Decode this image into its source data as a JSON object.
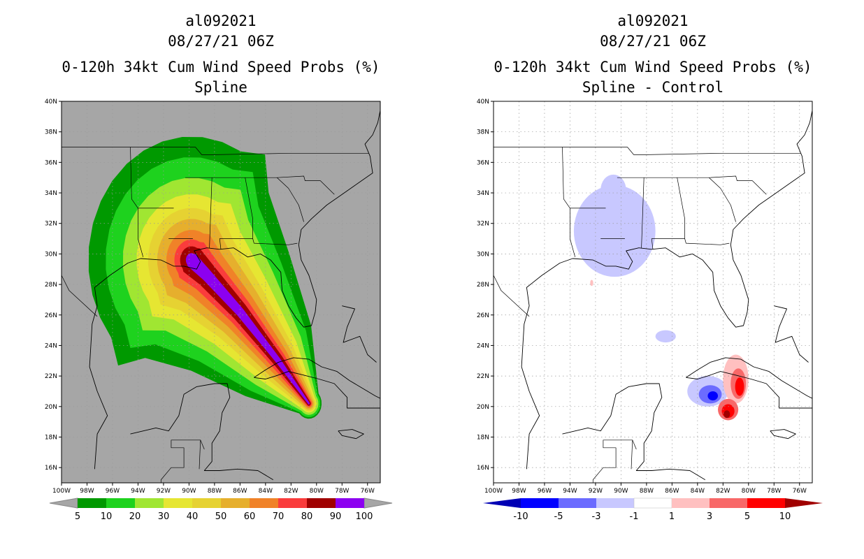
{
  "panels": [
    {
      "storm_id": "al092021",
      "datetime": "08/27/21 06Z",
      "title": "0-120h 34kt Cum Wind Speed Probs (%)",
      "subtitle": "Spline"
    },
    {
      "storm_id": "al092021",
      "datetime": "08/27/21 06Z",
      "title": "0-120h 34kt Cum Wind Speed Probs (%)",
      "subtitle": "Spline - Control"
    }
  ],
  "chart_data": [
    {
      "type": "heatmap",
      "title": "0-120h 34kt Cum Wind Speed Probs (%)",
      "subtitle": "Spline",
      "xlim": [
        -100,
        -75
      ],
      "ylim": [
        15,
        40
      ],
      "x_ticks": [
        -100,
        -98,
        -96,
        -94,
        -92,
        -90,
        -88,
        -86,
        -84,
        -82,
        -80,
        -78,
        -76
      ],
      "y_ticks": [
        16,
        18,
        20,
        22,
        24,
        26,
        28,
        30,
        32,
        34,
        36,
        38,
        40
      ],
      "x_tick_labels": [
        "100W",
        "98W",
        "96W",
        "94W",
        "92W",
        "90W",
        "88W",
        "86W",
        "84W",
        "82W",
        "80W",
        "78W",
        "76W"
      ],
      "y_tick_labels": [
        "16N",
        "18N",
        "20N",
        "22N",
        "24N",
        "26N",
        "28N",
        "30N",
        "32N",
        "34N",
        "36N",
        "38N",
        "40N"
      ],
      "background_color": "#a6a6a6",
      "levels": [
        5,
        10,
        20,
        30,
        40,
        50,
        60,
        70,
        80,
        90,
        100
      ],
      "colorbar_labels": [
        "5",
        "10",
        "20",
        "30",
        "40",
        "50",
        "60",
        "70",
        "80",
        "90",
        "100"
      ],
      "colors": [
        "#009900",
        "#1ed21e",
        "#a0e632",
        "#e6e632",
        "#e6d232",
        "#e6af2d",
        "#f08228",
        "#fa3c3c",
        "#a00000",
        "#8c00f0"
      ],
      "swath": {
        "track_lon": [
          -80.6,
          -83.0,
          -86.0,
          -88.6,
          -89.8
        ],
        "track_lat": [
          20.2,
          23.0,
          26.2,
          28.6,
          29.6
        ],
        "thresholds": [
          5,
          10,
          20,
          30,
          40,
          50,
          60,
          70,
          80,
          90
        ],
        "half_width_deg_start": [
          1.0,
          0.9,
          0.75,
          0.6,
          0.5,
          0.4,
          0.3,
          0.22,
          0.15,
          0.07
        ],
        "half_width_deg_end": [
          9.0,
          7.5,
          6.0,
          4.8,
          3.8,
          3.0,
          2.2,
          1.5,
          1.0,
          0.5
        ]
      }
    },
    {
      "type": "heatmap",
      "title": "0-120h 34kt Cum Wind Speed Probs (%)",
      "subtitle": "Spline - Control",
      "xlim": [
        -100,
        -75
      ],
      "ylim": [
        15,
        40
      ],
      "x_ticks": [
        -100,
        -98,
        -96,
        -94,
        -92,
        -90,
        -88,
        -86,
        -84,
        -82,
        -80,
        -78,
        -76
      ],
      "y_ticks": [
        16,
        18,
        20,
        22,
        24,
        26,
        28,
        30,
        32,
        34,
        36,
        38,
        40
      ],
      "x_tick_labels": [
        "100W",
        "98W",
        "96W",
        "94W",
        "92W",
        "90W",
        "88W",
        "86W",
        "84W",
        "82W",
        "80W",
        "78W",
        "76W"
      ],
      "y_tick_labels": [
        "16N",
        "18N",
        "20N",
        "22N",
        "24N",
        "26N",
        "28N",
        "30N",
        "32N",
        "34N",
        "36N",
        "38N",
        "40N"
      ],
      "background_color": "#ffffff",
      "levels": [
        -10,
        -5,
        -3,
        -1,
        1,
        3,
        5,
        10
      ],
      "colorbar_labels": [
        "-10",
        "-5",
        "-3",
        "-1",
        "1",
        "3",
        "5",
        "10"
      ],
      "colors": [
        "#0000b4",
        "#0000ff",
        "#6b6bff",
        "#c8c8ff",
        "#ffffff",
        "#ffc0c0",
        "#f86868",
        "#ff0000",
        "#a00000"
      ],
      "features": [
        {
          "name": "negative-area-gulf-coast",
          "lon": -90.5,
          "lat": 31.5,
          "rx_deg": 3.2,
          "ry_deg": 3.0,
          "class": "-3 to -1"
        },
        {
          "name": "negative-spot-arkansas",
          "lon": -90.6,
          "lat": 34.2,
          "rx_deg": 1.0,
          "ry_deg": 1.0,
          "class": "-3 to -1"
        },
        {
          "name": "negative-spot-gulf",
          "lon": -86.5,
          "lat": 24.6,
          "rx_deg": 0.8,
          "ry_deg": 0.4,
          "class": "-3 to -1"
        },
        {
          "name": "negative-cuba-outer",
          "lon": -83.2,
          "lat": 21.0,
          "rx_deg": 1.6,
          "ry_deg": 1.0,
          "class": "-3 to -1"
        },
        {
          "name": "negative-cuba-mid",
          "lon": -83.0,
          "lat": 20.8,
          "rx_deg": 0.9,
          "ry_deg": 0.6,
          "class": "-5 to -3"
        },
        {
          "name": "negative-cuba-core",
          "lon": -82.8,
          "lat": 20.7,
          "rx_deg": 0.4,
          "ry_deg": 0.3,
          "class": "-10 to -5"
        },
        {
          "name": "positive-cuba-north-outer",
          "lon": -81.0,
          "lat": 21.8,
          "rx_deg": 1.0,
          "ry_deg": 1.6,
          "class": "1 to 3"
        },
        {
          "name": "positive-cuba-north-mid",
          "lon": -80.8,
          "lat": 21.5,
          "rx_deg": 0.6,
          "ry_deg": 1.0,
          "class": "3 to 5"
        },
        {
          "name": "positive-cuba-north-core",
          "lon": -80.7,
          "lat": 21.3,
          "rx_deg": 0.35,
          "ry_deg": 0.6,
          "class": "5 to 10"
        },
        {
          "name": "positive-south-outer",
          "lon": -81.6,
          "lat": 19.8,
          "rx_deg": 0.8,
          "ry_deg": 0.7,
          "class": "3 to 5"
        },
        {
          "name": "positive-south-mid",
          "lon": -81.6,
          "lat": 19.7,
          "rx_deg": 0.5,
          "ry_deg": 0.45,
          "class": "5 to 10"
        },
        {
          "name": "positive-south-core",
          "lon": -81.7,
          "lat": 19.5,
          "rx_deg": 0.25,
          "ry_deg": 0.25,
          "class": "> 10"
        },
        {
          "name": "positive-spot-gulf",
          "lon": -92.3,
          "lat": 28.1,
          "rx_deg": 0.12,
          "ry_deg": 0.2,
          "class": "1 to 3"
        }
      ]
    }
  ]
}
